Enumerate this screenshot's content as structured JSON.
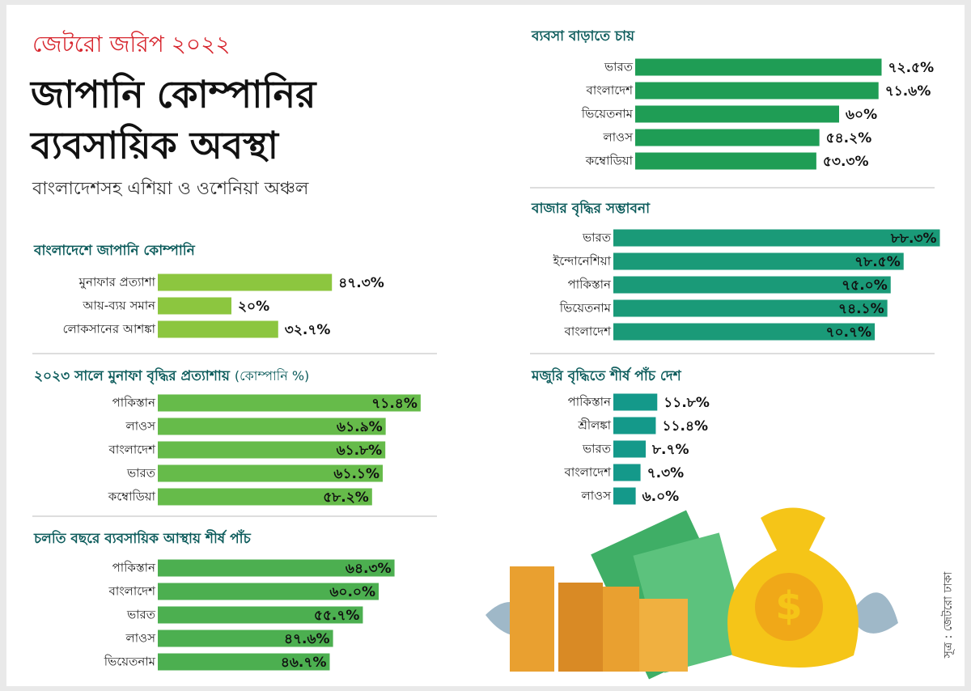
{
  "header": {
    "kicker": "জেটরো জরিপ ২০২২",
    "title_lines": [
      "জাপানি কোম্পানির",
      "ব্যবসায়িক অবস্থা"
    ],
    "subtitle": "বাংলাদেশসহ এশিয়া ও ওশেনিয়া অঞ্চল"
  },
  "source": "সূত্র : জেটরো ঢাকা",
  "chart_data": [
    {
      "type": "bar",
      "title": "বাংলাদেশে জাপানি কোম্পানি",
      "color": "#8cc63f",
      "categories": [
        "মুনাফার প্রত্যাশা",
        "আয়-ব্যয় সমান",
        "লোকসানের আশঙ্কা"
      ],
      "values": [
        47.3,
        20,
        32.7
      ],
      "value_labels": [
        "৪৭.৩%",
        "২০%",
        "৩২.৭%"
      ]
    },
    {
      "type": "bar",
      "title": "২০২৩ সালে মুনাফা বৃদ্ধির প্রত্যাশায়",
      "subtitle": "(কোম্পানি %)",
      "color": "#66bb4a",
      "categories": [
        "পাকিস্তান",
        "লাওস",
        "বাংলাদেশ",
        "ভারত",
        "কম্বোডিয়া"
      ],
      "values": [
        71.4,
        61.9,
        61.8,
        61.1,
        58.2
      ],
      "value_labels": [
        "৭১.৪%",
        "৬১.৯%",
        "৬১.৮%",
        "৬১.১%",
        "৫৮.২%"
      ]
    },
    {
      "type": "bar",
      "title": "চলতি বছরে ব্যবসায়িক আস্থায় শীর্ষ পাঁচ",
      "color": "#4caf50",
      "categories": [
        "পাকিস্তান",
        "বাংলাদেশ",
        "ভারত",
        "লাওস",
        "ভিয়েতনাম"
      ],
      "values": [
        64.3,
        60.0,
        55.7,
        47.6,
        46.7
      ],
      "value_labels": [
        "৬৪.৩%",
        "৬০.০%",
        "৫৫.৭%",
        "৪৭.৬%",
        "৪৬.৭%"
      ]
    },
    {
      "type": "bar",
      "title": "ব্যবসা বাড়াতে চায়",
      "color": "#1f9d55",
      "categories": [
        "ভারত",
        "বাংলাদেশ",
        "ভিয়েতনাম",
        "লাওস",
        "কম্বোডিয়া"
      ],
      "values": [
        72.5,
        71.6,
        60,
        54.2,
        53.3
      ],
      "value_labels": [
        "৭২.৫%",
        "৭১.৬%",
        "৬০%",
        "৫৪.২%",
        "৫৩.৩%"
      ]
    },
    {
      "type": "bar",
      "title": "বাজার বৃদ্ধির সম্ভাবনা",
      "color": "#1a9a78",
      "categories": [
        "ভারত",
        "ইন্দোনেশিয়া",
        "পাকিস্তান",
        "ভিয়েতনাম",
        "বাংলাদেশ"
      ],
      "values": [
        88.3,
        78.5,
        75.0,
        74.1,
        70.7
      ],
      "value_labels": [
        "৮৮.৩%",
        "৭৮.৫%",
        "৭৫.০%",
        "৭৪.১%",
        "৭০.৭%"
      ]
    },
    {
      "type": "bar",
      "title": "মজুরি বৃদ্ধিতে শীর্ষ পাঁচ দেশ",
      "color": "#14998a",
      "categories": [
        "পাকিস্তান",
        "শ্রীলঙ্কা",
        "ভারত",
        "বাংলাদেশ",
        "লাওস"
      ],
      "values": [
        11.8,
        11.4,
        8.7,
        7.3,
        6.0
      ],
      "value_labels": [
        "১১.৮%",
        "১১.৪%",
        "৮.৭%",
        "৭.৩%",
        "৬.০%"
      ]
    }
  ]
}
